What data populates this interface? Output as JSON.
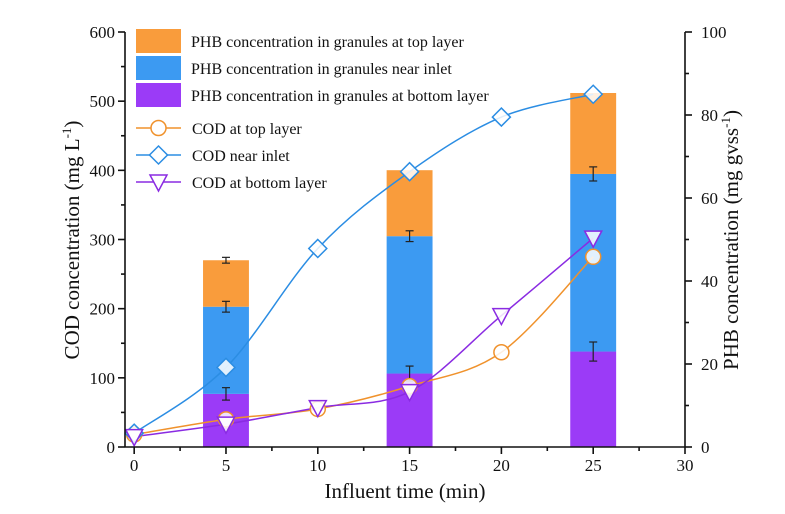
{
  "chart_data": {
    "type": "bar+line",
    "title": "",
    "xlabel": "Influent time (min)",
    "ylabel": "COD concentration (mg L",
    "ylabel_sup": "-1",
    "ylabel_end": ")",
    "y2label": "PHB concentration (mg gvss",
    "y2label_sup": "-1",
    "y2label_end": ")",
    "xlim": [
      -0.5,
      30
    ],
    "ylim": [
      0,
      600
    ],
    "y2lim": [
      0,
      100
    ],
    "xticks": [
      0,
      5,
      10,
      15,
      20,
      25,
      30
    ],
    "yticks": [
      0,
      100,
      200,
      300,
      400,
      500,
      600
    ],
    "y2ticks": [
      0,
      20,
      40,
      60,
      80,
      100
    ],
    "grid": false,
    "legend_placement": "top-left",
    "bar_categories": [
      5,
      15,
      25
    ],
    "bar_width": 2.5,
    "bar_series": [
      {
        "name": "PHB concentration in granules at bottom layer",
        "color": "#9B3BF7",
        "values": [
          12.8,
          17.7,
          23.0
        ],
        "errors": [
          1.5,
          1.8,
          2.3
        ]
      },
      {
        "name": "PHB concentration in granules near inlet",
        "color": "#3C9AF2",
        "values": [
          21.0,
          33.1,
          42.8
        ],
        "errors": [
          1.3,
          1.3,
          1.7
        ]
      },
      {
        "name": "PHB concentration in granules at top layer",
        "color": "#F99C3C",
        "values": [
          11.2,
          15.9,
          19.5
        ],
        "errors": [
          0.7,
          0,
          0
        ]
      }
    ],
    "legend_bar_order": [
      2,
      1,
      0
    ],
    "x": [
      0,
      5,
      10,
      15,
      20,
      25
    ],
    "line_series": [
      {
        "name": "COD at top layer",
        "color": "#F0922C",
        "marker": "circle",
        "values": [
          18,
          40,
          55,
          88,
          137,
          275
        ]
      },
      {
        "name": "COD near inlet",
        "color": "#2B8DE3",
        "marker": "diamond",
        "values": [
          20,
          115,
          287,
          398,
          477,
          510
        ]
      },
      {
        "name": "COD at bottom layer",
        "color": "#8A2BE2",
        "marker": "triangle-down",
        "values": [
          15,
          33,
          57,
          80,
          190,
          302
        ]
      }
    ]
  }
}
